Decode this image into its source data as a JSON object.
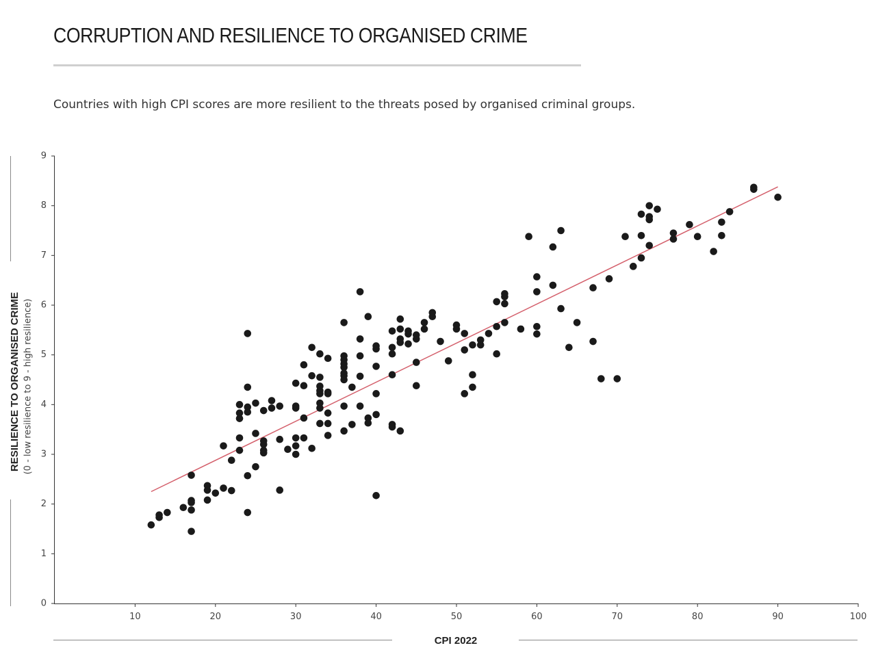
{
  "title": "CORRUPTION AND RESILIENCE TO ORGANISED CRIME",
  "subtitle": "Countries with high CPI scores are more resilient to the threats posed by organised criminal groups.",
  "colors": {
    "point": "#1a1a1a",
    "trendline": "#d4606c",
    "axis": "#333333",
    "rule": "#cfcfcf"
  },
  "chart_data": {
    "type": "scatter",
    "xlabel": "CPI 2022",
    "ylabel": "RESILIENCE TO ORGANISED CRIME",
    "ylabel_sub": "(0 - low resilience to 9 - high resilience)",
    "xlim": [
      0,
      100
    ],
    "ylim": [
      0,
      9
    ],
    "xticks": [
      10,
      20,
      30,
      40,
      50,
      60,
      70,
      80,
      90,
      100
    ],
    "yticks": [
      0,
      1,
      2,
      3,
      4,
      5,
      6,
      7,
      8,
      9
    ],
    "grid": false,
    "legend": "none",
    "trendline": {
      "x": [
        12,
        90
      ],
      "y": [
        2.25,
        8.38
      ]
    },
    "points": [
      [
        12,
        1.58
      ],
      [
        13,
        1.73
      ],
      [
        13,
        1.78
      ],
      [
        14,
        1.83
      ],
      [
        16,
        1.93
      ],
      [
        17,
        1.88
      ],
      [
        17,
        2.03
      ],
      [
        17,
        2.07
      ],
      [
        17,
        2.58
      ],
      [
        17,
        1.45
      ],
      [
        19,
        2.08
      ],
      [
        19,
        2.28
      ],
      [
        19,
        2.37
      ],
      [
        20,
        2.22
      ],
      [
        21,
        2.32
      ],
      [
        21,
        3.17
      ],
      [
        22,
        2.27
      ],
      [
        22,
        2.88
      ],
      [
        23,
        3.08
      ],
      [
        23,
        3.33
      ],
      [
        23,
        3.72
      ],
      [
        23,
        3.83
      ],
      [
        23,
        4.0
      ],
      [
        24,
        3.85
      ],
      [
        24,
        3.95
      ],
      [
        24,
        4.35
      ],
      [
        24,
        5.43
      ],
      [
        24,
        2.57
      ],
      [
        24,
        1.83
      ],
      [
        25,
        2.75
      ],
      [
        25,
        3.42
      ],
      [
        25,
        4.03
      ],
      [
        26,
        3.03
      ],
      [
        26,
        3.08
      ],
      [
        26,
        3.2
      ],
      [
        26,
        3.27
      ],
      [
        26,
        3.88
      ],
      [
        27,
        3.93
      ],
      [
        27,
        4.08
      ],
      [
        28,
        3.97
      ],
      [
        28,
        3.3
      ],
      [
        28,
        2.28
      ],
      [
        29,
        3.1
      ],
      [
        30,
        3.0
      ],
      [
        30,
        3.17
      ],
      [
        30,
        3.33
      ],
      [
        30,
        3.93
      ],
      [
        30,
        3.97
      ],
      [
        30,
        4.43
      ],
      [
        31,
        3.33
      ],
      [
        31,
        3.73
      ],
      [
        31,
        4.38
      ],
      [
        31,
        4.8
      ],
      [
        32,
        3.12
      ],
      [
        32,
        4.58
      ],
      [
        32,
        5.15
      ],
      [
        33,
        3.62
      ],
      [
        33,
        3.93
      ],
      [
        33,
        4.03
      ],
      [
        33,
        4.22
      ],
      [
        33,
        4.28
      ],
      [
        33,
        4.37
      ],
      [
        33,
        4.55
      ],
      [
        33,
        5.02
      ],
      [
        34,
        3.38
      ],
      [
        34,
        3.62
      ],
      [
        34,
        3.83
      ],
      [
        34,
        4.22
      ],
      [
        34,
        4.25
      ],
      [
        34,
        4.93
      ],
      [
        36,
        3.47
      ],
      [
        36,
        3.97
      ],
      [
        36,
        4.5
      ],
      [
        36,
        4.58
      ],
      [
        36,
        4.63
      ],
      [
        36,
        4.75
      ],
      [
        36,
        4.82
      ],
      [
        36,
        4.9
      ],
      [
        36,
        4.98
      ],
      [
        36,
        5.65
      ],
      [
        37,
        3.6
      ],
      [
        37,
        4.35
      ],
      [
        38,
        3.97
      ],
      [
        38,
        4.57
      ],
      [
        38,
        4.98
      ],
      [
        38,
        5.32
      ],
      [
        38,
        6.27
      ],
      [
        39,
        3.63
      ],
      [
        39,
        3.73
      ],
      [
        39,
        5.77
      ],
      [
        40,
        2.17
      ],
      [
        40,
        3.8
      ],
      [
        40,
        4.22
      ],
      [
        40,
        4.77
      ],
      [
        40,
        5.12
      ],
      [
        40,
        5.18
      ],
      [
        42,
        3.55
      ],
      [
        42,
        3.6
      ],
      [
        42,
        4.6
      ],
      [
        42,
        5.02
      ],
      [
        42,
        5.15
      ],
      [
        42,
        5.48
      ],
      [
        43,
        3.47
      ],
      [
        43,
        5.25
      ],
      [
        43,
        5.32
      ],
      [
        43,
        5.52
      ],
      [
        43,
        5.72
      ],
      [
        44,
        5.22
      ],
      [
        44,
        5.42
      ],
      [
        44,
        5.48
      ],
      [
        45,
        5.32
      ],
      [
        45,
        5.4
      ],
      [
        45,
        4.85
      ],
      [
        45,
        4.38
      ],
      [
        46,
        5.52
      ],
      [
        46,
        5.65
      ],
      [
        47,
        5.77
      ],
      [
        47,
        5.85
      ],
      [
        48,
        5.27
      ],
      [
        49,
        4.88
      ],
      [
        50,
        5.52
      ],
      [
        50,
        5.6
      ],
      [
        51,
        5.1
      ],
      [
        51,
        5.43
      ],
      [
        51,
        4.22
      ],
      [
        52,
        4.35
      ],
      [
        52,
        4.6
      ],
      [
        52,
        5.2
      ],
      [
        53,
        5.2
      ],
      [
        53,
        5.3
      ],
      [
        54,
        5.43
      ],
      [
        55,
        5.02
      ],
      [
        55,
        5.57
      ],
      [
        55,
        6.07
      ],
      [
        56,
        5.65
      ],
      [
        56,
        6.03
      ],
      [
        56,
        6.17
      ],
      [
        56,
        6.23
      ],
      [
        58,
        5.52
      ],
      [
        59,
        7.38
      ],
      [
        60,
        5.42
      ],
      [
        60,
        5.57
      ],
      [
        60,
        6.27
      ],
      [
        60,
        6.57
      ],
      [
        62,
        6.4
      ],
      [
        62,
        7.17
      ],
      [
        63,
        5.93
      ],
      [
        63,
        7.5
      ],
      [
        64,
        5.15
      ],
      [
        65,
        5.65
      ],
      [
        67,
        5.27
      ],
      [
        67,
        6.35
      ],
      [
        68,
        4.52
      ],
      [
        69,
        6.53
      ],
      [
        70,
        4.52
      ],
      [
        71,
        7.38
      ],
      [
        72,
        6.78
      ],
      [
        73,
        6.95
      ],
      [
        73,
        7.4
      ],
      [
        73,
        7.83
      ],
      [
        74,
        7.2
      ],
      [
        74,
        7.72
      ],
      [
        74,
        7.78
      ],
      [
        74,
        8.0
      ],
      [
        75,
        7.93
      ],
      [
        77,
        7.33
      ],
      [
        77,
        7.45
      ],
      [
        79,
        7.62
      ],
      [
        80,
        7.38
      ],
      [
        82,
        7.08
      ],
      [
        83,
        7.4
      ],
      [
        83,
        7.67
      ],
      [
        84,
        7.88
      ],
      [
        87,
        8.33
      ],
      [
        87,
        8.37
      ],
      [
        90,
        8.17
      ]
    ]
  }
}
